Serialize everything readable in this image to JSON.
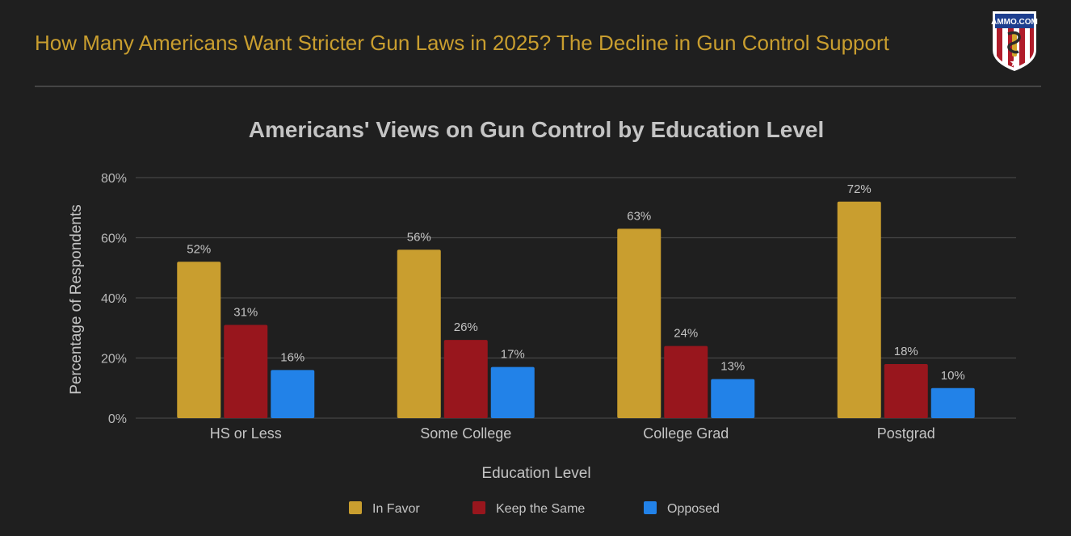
{
  "header": {
    "title": "How Many Americans Want Stricter Gun Laws in 2025? The Decline in Gun Control Support",
    "logo_text": "AMMO.COM",
    "logo_icon": "shield-snake-bullet-icon"
  },
  "colors": {
    "background": "#1f1f1f",
    "title": "#c99e2f",
    "in_favor": "#c99e2f",
    "keep_same": "#98161d",
    "opposed": "#2282e8",
    "grid": "#454545",
    "text": "#c4c4c4"
  },
  "chart_data": {
    "type": "bar",
    "title": "Americans' Views on Gun Control by Education Level",
    "xlabel": "Education Level",
    "ylabel": "Percentage of Respondents",
    "categories": [
      "HS or Less",
      "Some College",
      "College Grad",
      "Postgrad"
    ],
    "series": [
      {
        "name": "In Favor",
        "color": "#c99e2f",
        "values": [
          52,
          56,
          63,
          72
        ]
      },
      {
        "name": "Keep the Same",
        "color": "#98161d",
        "values": [
          31,
          26,
          24,
          18
        ]
      },
      {
        "name": "Opposed",
        "color": "#2282e8",
        "values": [
          16,
          17,
          13,
          10
        ]
      }
    ],
    "value_suffix": "%",
    "ylim": [
      0,
      80
    ],
    "yticks": [
      0,
      20,
      40,
      60,
      80
    ],
    "ytick_labels": [
      "0%",
      "20%",
      "40%",
      "60%",
      "80%"
    ],
    "grid": true,
    "legend_position": "bottom",
    "data_labels": true
  }
}
